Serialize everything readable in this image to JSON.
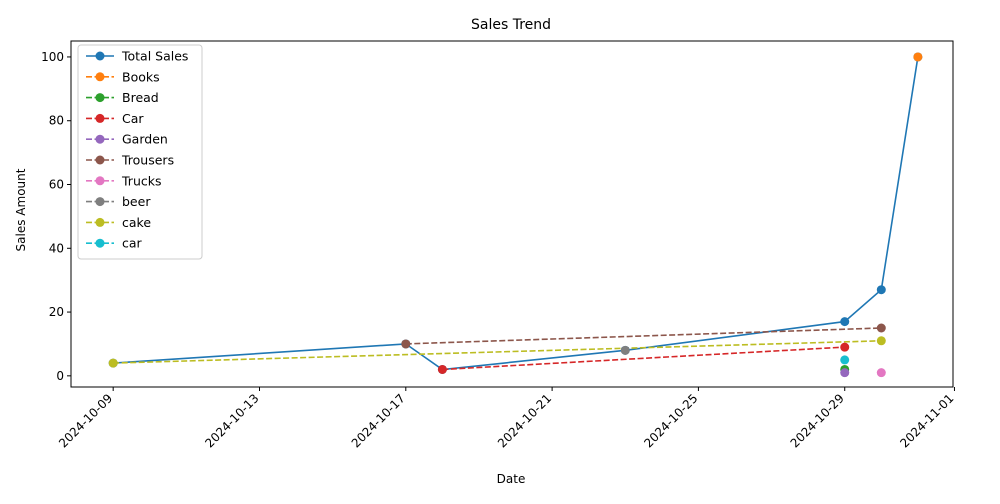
{
  "chart_data": {
    "type": "line",
    "title": "Sales Trend",
    "xlabel": "Date",
    "ylabel": "Sales Amount",
    "xlim": [
      "2024-10-07",
      "2024-11-01"
    ],
    "ylim": [
      -3.5,
      105
    ],
    "grid": false,
    "legend_position": "top-left",
    "x_ticks": [
      "2024-10-09",
      "2024-10-13",
      "2024-10-17",
      "2024-10-21",
      "2024-10-25",
      "2024-10-29",
      "2024-11-01"
    ],
    "y_ticks": [
      0,
      20,
      40,
      60,
      80,
      100
    ],
    "series": [
      {
        "name": "Total Sales",
        "color": "#1f77b4",
        "dashed": false,
        "points": [
          [
            "2024-10-09",
            4
          ],
          [
            "2024-10-17",
            10
          ],
          [
            "2024-10-18",
            2
          ],
          [
            "2024-10-23",
            8
          ],
          [
            "2024-10-29",
            17
          ],
          [
            "2024-10-30",
            27
          ],
          [
            "2024-10-31",
            100
          ]
        ]
      },
      {
        "name": "Books",
        "color": "#ff7f0e",
        "dashed": true,
        "points": [
          [
            "2024-10-31",
            100
          ]
        ]
      },
      {
        "name": "Bread",
        "color": "#2ca02c",
        "dashed": true,
        "points": [
          [
            "2024-10-29",
            2
          ]
        ]
      },
      {
        "name": "Car",
        "color": "#d62728",
        "dashed": true,
        "points": [
          [
            "2024-10-18",
            2
          ],
          [
            "2024-10-29",
            9
          ]
        ]
      },
      {
        "name": "Garden",
        "color": "#9467bd",
        "dashed": true,
        "points": [
          [
            "2024-10-29",
            1
          ]
        ]
      },
      {
        "name": "Trousers",
        "color": "#8c564b",
        "dashed": true,
        "points": [
          [
            "2024-10-17",
            10
          ],
          [
            "2024-10-30",
            15
          ]
        ]
      },
      {
        "name": "Trucks",
        "color": "#e377c2",
        "dashed": true,
        "points": [
          [
            "2024-10-30",
            1
          ]
        ]
      },
      {
        "name": "beer",
        "color": "#7f7f7f",
        "dashed": true,
        "points": [
          [
            "2024-10-23",
            8
          ]
        ]
      },
      {
        "name": "cake",
        "color": "#bcbd22",
        "dashed": true,
        "points": [
          [
            "2024-10-09",
            4
          ],
          [
            "2024-10-30",
            11
          ]
        ]
      },
      {
        "name": "car",
        "color": "#17becf",
        "dashed": true,
        "points": [
          [
            "2024-10-29",
            5
          ]
        ]
      }
    ]
  }
}
